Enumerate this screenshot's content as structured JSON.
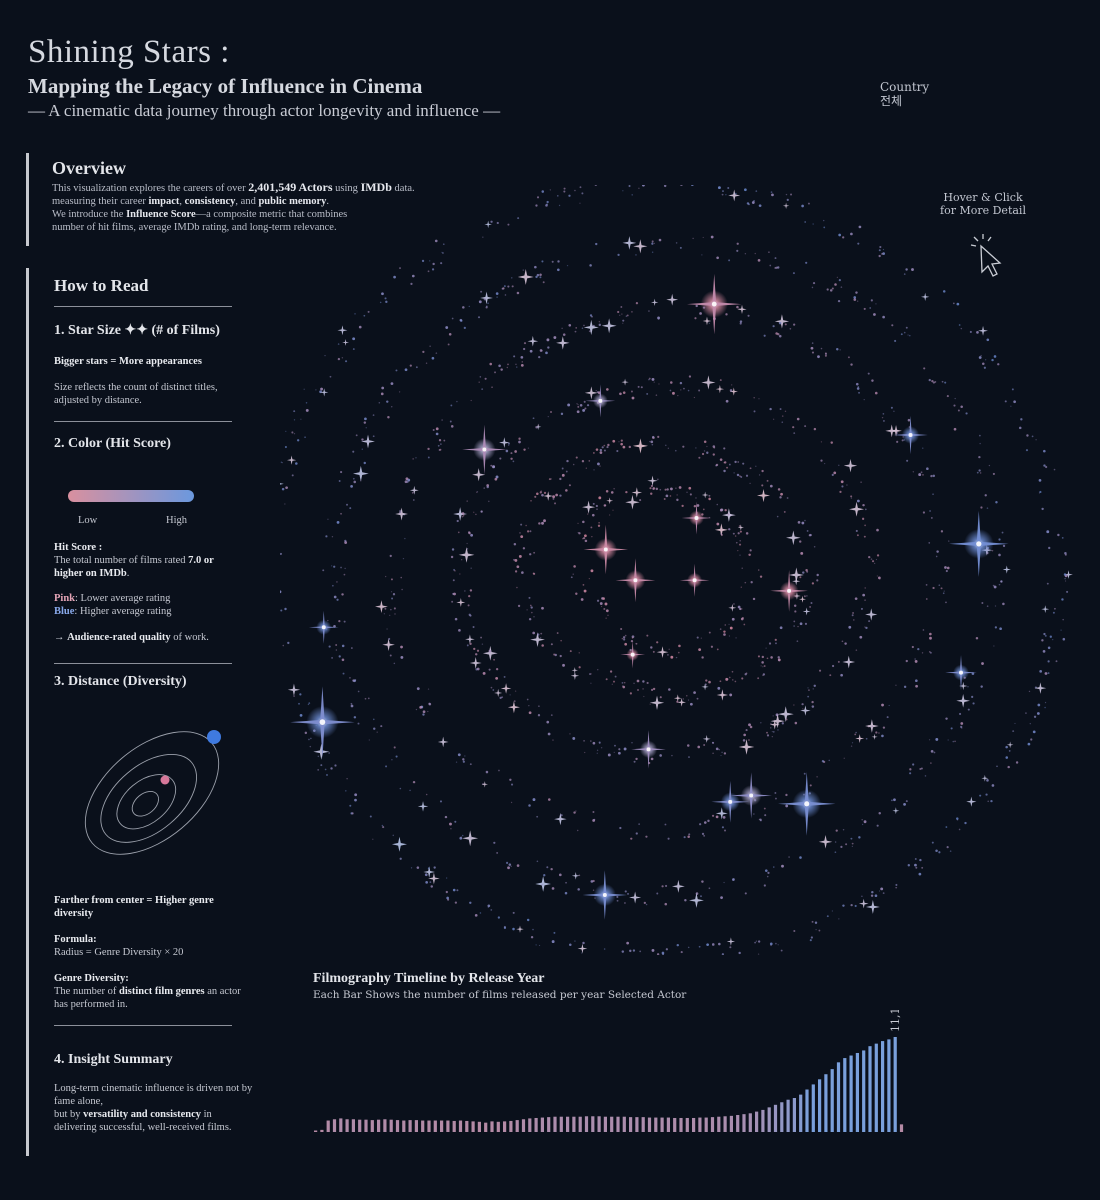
{
  "header": {
    "title": "Shining Stars :",
    "subtitle": "Mapping the Legacy of Influence in Cinema",
    "tagline": "— A cinematic data journey through actor longevity and influence —"
  },
  "filter": {
    "label": "Country",
    "value": "전체"
  },
  "overview": {
    "heading": "Overview",
    "line1_pre": "This visualization explores the careers of over ",
    "actor_count": "2,401,549 Actors",
    "line1_mid": " using ",
    "source": "IMDb",
    "line1_post": " data.",
    "line2_pre": "measuring their career ",
    "impact": "impact",
    "comma1": ", ",
    "consistency": "consistency",
    "and": ", and ",
    "memory": "public memory",
    "period": ".",
    "line3_pre": "We introduce the ",
    "score_name": "Influence Score",
    "line3_post": "—a composite metric that combines",
    "line4": "number of hit films, average IMDb rating, and long-term relevance."
  },
  "howto": {
    "heading": "How to Read",
    "s1_title": "1. Star Size ✦✦ (# of Films)",
    "s1_bold": "Bigger stars = More appearances",
    "s1_text": "Size reflects the count of distinct titles, adjusted by distance.",
    "s2_title": "2. Color (Hit Score)",
    "s2_low": "Low",
    "s2_high": "High",
    "s2_def_bold": "Hit Score :",
    "s2_def_pre": "The total number of films rated ",
    "s2_def_bold2": "7.0 or higher on IMDb",
    "s2_def_post": ".",
    "s2_pink_label": "Pink",
    "s2_pink_text": ": Lower average rating",
    "s2_blue_label": "Blue",
    "s2_blue_text": ": Higher average rating",
    "s2_arrow": "→ ",
    "s2_arrow_bold": "Audience-rated quality",
    "s2_arrow_post": " of work.",
    "s3_title": "3. Distance (Diversity)",
    "s3_bold": "Farther from center = Higher genre diversity",
    "s3_formula_label": "Formula:",
    "s3_formula": "Radius = Genre Diversity × 20",
    "s3_gd_label": "Genre Diversity:",
    "s3_gd_pre": "The number of ",
    "s3_gd_bold": "distinct film genres",
    "s3_gd_post": " an actor has performed in.",
    "s4_title": "4. Insight Summary",
    "s4_l1": "Long-term cinematic influence is driven not by fame alone,",
    "s4_l2_pre": "but by ",
    "s4_l2_bold": "versatility and consistency",
    "s4_l2_post": " in delivering successful, well-received films."
  },
  "hint": {
    "line1": "Hover & Click",
    "line2": "for More Detail"
  },
  "colors": {
    "background": "#0a101b",
    "pink": "#d98aa2",
    "blue": "#6f8fd8",
    "legend_pink": "#d9909f",
    "legend_blue": "#6b98de"
  },
  "chart_data": [
    {
      "type": "scatter",
      "subtype": "radial-star-map",
      "encoding": {
        "size": "# of Films",
        "color": "Hit Score (pink = low, blue = high)",
        "radius": "Genre Diversity × 20"
      },
      "highlighted_stars": [
        {
          "diversity": 1,
          "films": 40,
          "hit": 0.15
        },
        {
          "diversity": 1,
          "films": 30,
          "hit": 0.2
        },
        {
          "diversity": 2,
          "films": 45,
          "hit": 0.1
        },
        {
          "diversity": 2,
          "films": 30,
          "hit": 0.25
        },
        {
          "diversity": 3,
          "films": 25,
          "hit": 0.2
        },
        {
          "diversity": 4,
          "films": 38,
          "hit": 0.15
        },
        {
          "diversity": 6,
          "films": 35,
          "hit": 0.55
        },
        {
          "diversity": 6,
          "films": 30,
          "hit": 0.6
        },
        {
          "diversity": 7,
          "films": 45,
          "hit": 0.4
        },
        {
          "diversity": 8,
          "films": 38,
          "hit": 0.8
        },
        {
          "diversity": 8,
          "films": 42,
          "hit": 0.7
        },
        {
          "diversity": 9,
          "films": 55,
          "hit": 0.2
        },
        {
          "diversity": 9,
          "films": 35,
          "hit": 0.85
        },
        {
          "diversity": 9,
          "films": 58,
          "hit": 0.9
        },
        {
          "diversity": 10,
          "films": 32,
          "hit": 0.85
        },
        {
          "diversity": 10,
          "films": 60,
          "hit": 0.95
        },
        {
          "diversity": 11,
          "films": 45,
          "hit": 0.9
        },
        {
          "diversity": 11,
          "films": 30,
          "hit": 0.85
        },
        {
          "diversity": 12,
          "films": 65,
          "hit": 0.85
        }
      ]
    },
    {
      "type": "bar",
      "title": "Filmography Timeline by Release Year",
      "subtitle": "Each Bar Shows the number of films released per year Selected Actor",
      "max_label": "11,181",
      "max_value": 11181,
      "values": [
        150,
        250,
        1350,
        1500,
        1600,
        1500,
        1500,
        1450,
        1450,
        1400,
        1450,
        1500,
        1450,
        1400,
        1350,
        1400,
        1400,
        1350,
        1350,
        1350,
        1350,
        1350,
        1300,
        1350,
        1300,
        1250,
        1200,
        1100,
        1250,
        1200,
        1250,
        1300,
        1400,
        1500,
        1600,
        1650,
        1700,
        1750,
        1800,
        1800,
        1800,
        1800,
        1800,
        1850,
        1850,
        1850,
        1800,
        1800,
        1800,
        1800,
        1750,
        1750,
        1750,
        1700,
        1700,
        1700,
        1700,
        1650,
        1650,
        1650,
        1650,
        1700,
        1700,
        1750,
        1800,
        1850,
        1900,
        2000,
        2100,
        2200,
        2400,
        2600,
        2900,
        3200,
        3500,
        3800,
        4000,
        4400,
        5000,
        5600,
        6200,
        6800,
        7400,
        8200,
        8700,
        9000,
        9300,
        9600,
        10100,
        10400,
        10700,
        10900,
        11181,
        900
      ]
    }
  ]
}
